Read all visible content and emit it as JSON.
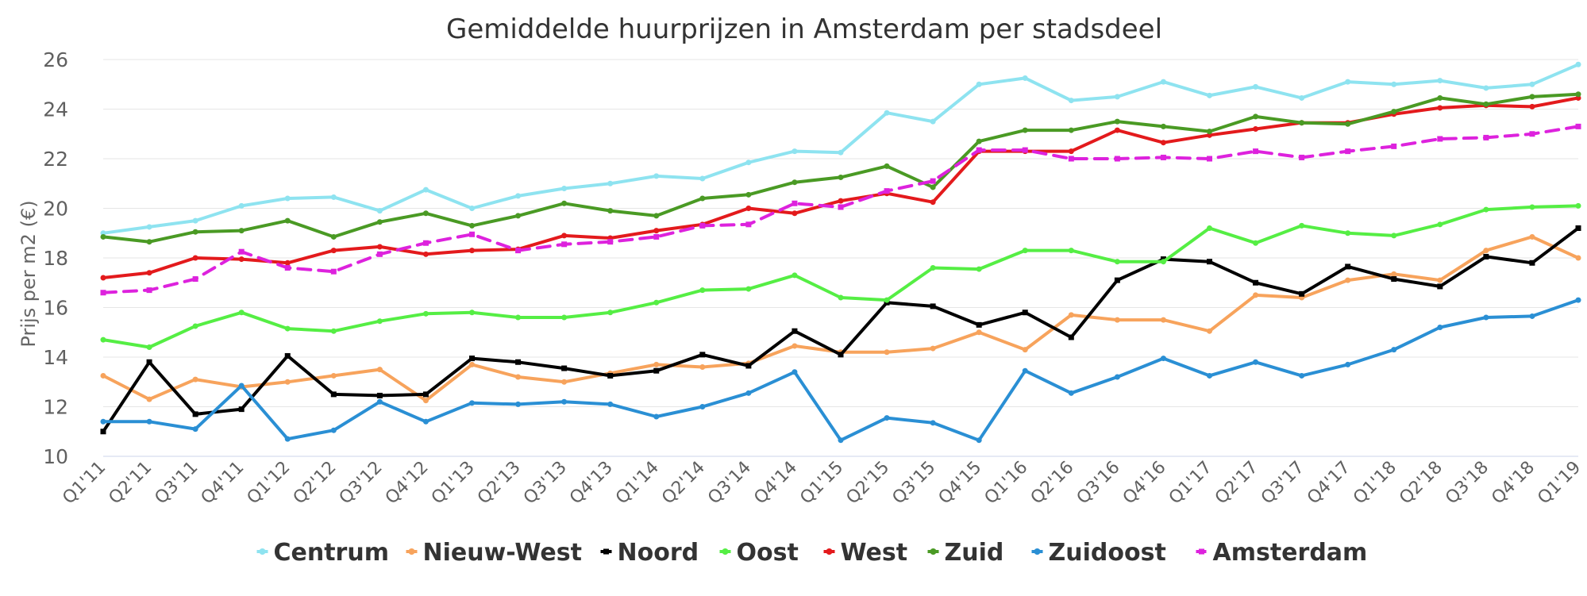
{
  "chart_data": {
    "type": "line",
    "title": "Gemiddelde huurprijzen in Amsterdam per stadsdeel",
    "xlabel": "",
    "ylabel": "Prijs per m2 (€)",
    "ylim": [
      10,
      26
    ],
    "yticks": [
      10,
      12,
      14,
      16,
      18,
      20,
      22,
      24,
      26
    ],
    "grid": true,
    "legend_position": "bottom",
    "categories": [
      "Q1'11",
      "Q2'11",
      "Q3'11",
      "Q4'11",
      "Q1'12",
      "Q2'12",
      "Q3'12",
      "Q4'12",
      "Q1'13",
      "Q2'13",
      "Q3'13",
      "Q4'13",
      "Q1'14",
      "Q2'14",
      "Q3'14",
      "Q4'14",
      "Q1'15",
      "Q2'15",
      "Q3'15",
      "Q4'15",
      "Q1'16",
      "Q2'16",
      "Q3'16",
      "Q4'16",
      "Q1'17",
      "Q2'17",
      "Q3'17",
      "Q4'17",
      "Q1'18",
      "Q2'18",
      "Q3'18",
      "Q4'18",
      "Q1'19"
    ],
    "series": [
      {
        "name": "Centrum",
        "color": "#8ee3f0",
        "dashed": false,
        "marker": "circle",
        "values": [
          19.0,
          19.25,
          19.5,
          20.1,
          20.4,
          20.45,
          19.9,
          20.75,
          20.0,
          20.5,
          20.8,
          21.0,
          21.3,
          21.2,
          21.85,
          22.3,
          22.25,
          23.85,
          23.5,
          25.0,
          25.25,
          24.35,
          24.5,
          25.1,
          24.55,
          24.9,
          24.45,
          25.1,
          25.0,
          25.15,
          24.85,
          25.0,
          25.8
        ]
      },
      {
        "name": "Nieuw-West",
        "color": "#f7a35c",
        "dashed": false,
        "marker": "circle",
        "values": [
          13.25,
          12.3,
          13.1,
          12.8,
          13.0,
          13.25,
          13.5,
          12.25,
          13.7,
          13.2,
          13.0,
          13.35,
          13.7,
          13.6,
          13.75,
          14.45,
          14.2,
          14.2,
          14.35,
          15.0,
          14.3,
          15.7,
          15.5,
          15.5,
          15.05,
          16.5,
          16.4,
          17.1,
          17.35,
          17.1,
          18.3,
          18.85,
          18.0
        ]
      },
      {
        "name": "Noord",
        "color": "#000000",
        "dashed": false,
        "marker": "square",
        "values": [
          11.0,
          13.8,
          11.7,
          11.9,
          14.05,
          12.5,
          12.45,
          12.5,
          13.95,
          13.8,
          13.55,
          13.25,
          13.45,
          14.1,
          13.65,
          15.05,
          14.1,
          16.2,
          16.05,
          15.3,
          15.8,
          14.8,
          17.1,
          17.95,
          17.85,
          17.0,
          16.55,
          17.65,
          17.15,
          16.85,
          18.05,
          17.8,
          19.2
        ]
      },
      {
        "name": "Oost",
        "color": "#55ee44",
        "dashed": false,
        "marker": "circle",
        "values": [
          14.7,
          14.4,
          15.25,
          15.8,
          15.15,
          15.05,
          15.45,
          15.75,
          15.8,
          15.6,
          15.6,
          15.8,
          16.2,
          16.7,
          16.75,
          17.3,
          16.4,
          16.3,
          17.6,
          17.55,
          18.3,
          18.3,
          17.85,
          17.85,
          19.2,
          18.6,
          19.3,
          19.0,
          18.9,
          19.35,
          19.95,
          20.05,
          20.1
        ]
      },
      {
        "name": "West",
        "color": "#e31a1c",
        "dashed": false,
        "marker": "circle",
        "values": [
          17.2,
          17.4,
          18.0,
          17.95,
          17.8,
          18.3,
          18.45,
          18.15,
          18.3,
          18.35,
          18.9,
          18.8,
          19.1,
          19.35,
          20.0,
          19.8,
          20.3,
          20.6,
          20.25,
          22.3,
          22.3,
          22.3,
          23.15,
          22.65,
          22.95,
          23.2,
          23.45,
          23.45,
          23.8,
          24.05,
          24.15,
          24.1,
          24.45
        ]
      },
      {
        "name": "Zuid",
        "color": "#4a9a24",
        "dashed": false,
        "marker": "circle",
        "values": [
          18.85,
          18.65,
          19.05,
          19.1,
          19.5,
          18.85,
          19.45,
          19.8,
          19.3,
          19.7,
          20.2,
          19.9,
          19.7,
          20.4,
          20.55,
          21.05,
          21.25,
          21.7,
          20.85,
          22.7,
          23.15,
          23.15,
          23.5,
          23.3,
          23.1,
          23.7,
          23.45,
          23.4,
          23.9,
          24.45,
          24.2,
          24.5,
          24.6
        ]
      },
      {
        "name": "Zuidoost",
        "color": "#2a8fd4",
        "dashed": false,
        "marker": "circle",
        "values": [
          11.4,
          11.4,
          11.1,
          12.85,
          10.7,
          11.05,
          12.2,
          11.4,
          12.15,
          12.1,
          12.2,
          12.1,
          11.6,
          12.0,
          12.55,
          13.4,
          10.65,
          11.55,
          11.35,
          10.65,
          13.45,
          12.55,
          13.2,
          13.95,
          13.25,
          13.8,
          13.25,
          13.7,
          14.3,
          15.2,
          15.6,
          15.65,
          16.3
        ]
      },
      {
        "name": "Amsterdam",
        "color": "#dd22dd",
        "dashed": true,
        "marker": "square",
        "values": [
          16.6,
          16.7,
          17.15,
          18.25,
          17.6,
          17.45,
          18.15,
          18.6,
          18.95,
          18.3,
          18.55,
          18.65,
          18.85,
          19.3,
          19.35,
          20.2,
          20.05,
          20.7,
          21.1,
          22.35,
          22.35,
          22.0,
          22.0,
          22.05,
          22.0,
          22.3,
          22.05,
          22.3,
          22.5,
          22.8,
          22.85,
          23.0,
          23.3
        ]
      }
    ]
  }
}
